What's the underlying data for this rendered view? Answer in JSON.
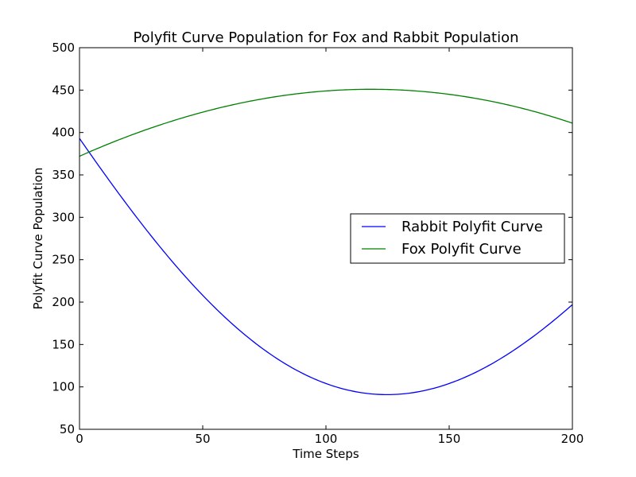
{
  "chart_data": {
    "type": "line",
    "title": "Polyfit Curve Population for Fox and Rabbit Population",
    "xlabel": "Time Steps",
    "ylabel": "Polyfit Curve Population",
    "xlim": [
      0,
      200
    ],
    "ylim": [
      50,
      500
    ],
    "x_ticks": [
      "0",
      "50",
      "100",
      "150",
      "200"
    ],
    "y_ticks": [
      "50",
      "100",
      "150",
      "200",
      "250",
      "300",
      "350",
      "400",
      "450",
      "500"
    ],
    "grid": false,
    "legend_position": "center-right",
    "series": [
      {
        "name": "Rabbit Polyfit Curve",
        "color": "#0000ff",
        "x": [
          0,
          25,
          50,
          75,
          100,
          125,
          150,
          175,
          200
        ],
        "y": [
          393,
          294,
          208,
          146,
          104,
          90,
          104,
          140,
          197
        ]
      },
      {
        "name": "Fox Polyfit Curve",
        "color": "#008000",
        "x": [
          0,
          25,
          50,
          75,
          100,
          125,
          150,
          175,
          200
        ],
        "y": [
          372,
          402,
          424,
          440,
          449,
          451,
          445,
          432,
          411
        ]
      }
    ]
  }
}
